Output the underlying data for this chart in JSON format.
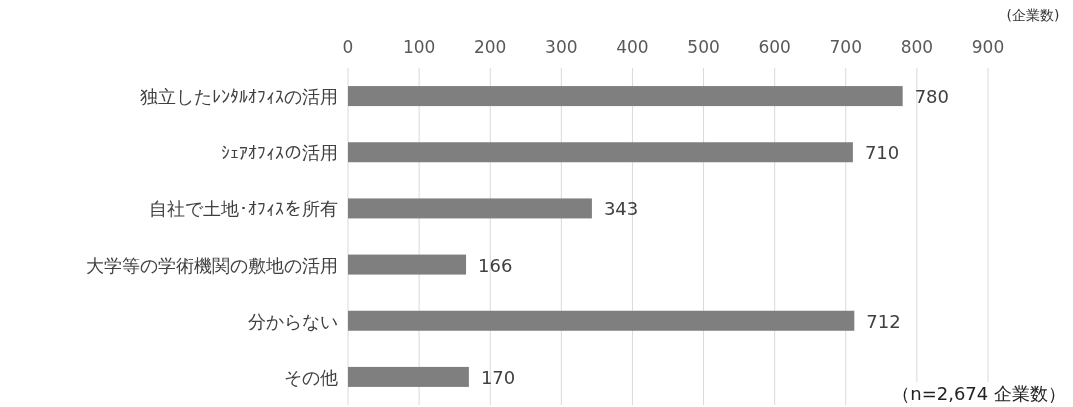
{
  "chart_data": {
    "type": "bar",
    "orientation": "horizontal",
    "categories": [
      "独立したﾚﾝﾀﾙｵﾌｨｽの活用",
      "ｼｪｱｵﾌｨｽの活用",
      "自社で土地･ｵﾌｨｽを所有",
      "大学等の学術機関の敷地の活用",
      "分からない",
      "その他"
    ],
    "values": [
      780,
      710,
      343,
      166,
      712,
      170
    ],
    "color": "#7f7f7f",
    "xlabel": "(企業数)",
    "xlim": [
      0,
      900
    ],
    "xticks": [
      0,
      100,
      200,
      300,
      400,
      500,
      600,
      700,
      800,
      900
    ],
    "grid": "x",
    "data_labels": true,
    "annotations": [
      "（n=2,674 企業数）"
    ]
  }
}
